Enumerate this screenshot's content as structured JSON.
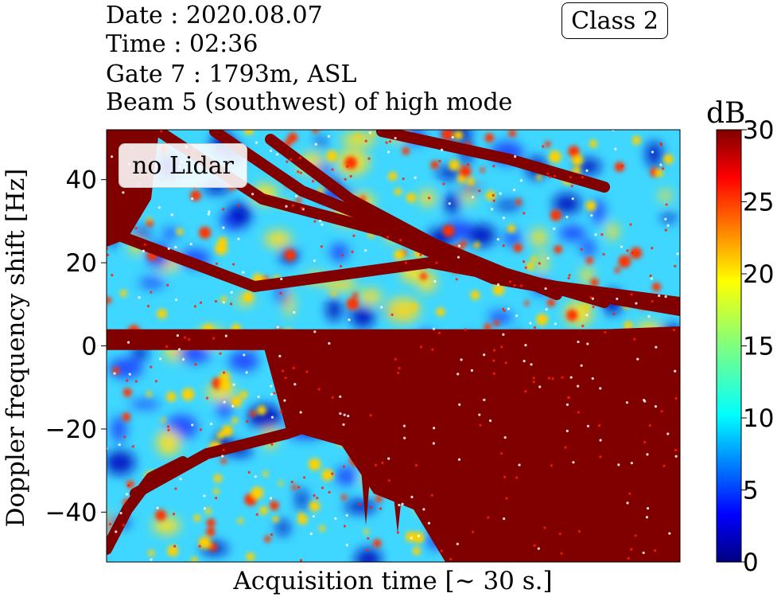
{
  "header": {
    "date": "Date : 2020.08.07",
    "time": "Time : 02:36",
    "gate": "Gate 7 : 1793m, ASL",
    "beam": "Beam 5 (southwest) of high mode",
    "class_label": "Class 2"
  },
  "annotation": "no Lidar",
  "chart_data": {
    "type": "heatmap",
    "xlabel": "Acquisition time [~ 30 s.]",
    "ylabel": "Doppler frequency shift [Hz]",
    "ylim": [
      -52,
      52
    ],
    "yticks": [
      40,
      20,
      0,
      -20,
      -40
    ],
    "ytick_labels": [
      "40",
      "20",
      "0",
      "−20",
      "−40"
    ],
    "xticks": [],
    "colorbar": {
      "label": "dB",
      "range": [
        0,
        30
      ],
      "ticks": [
        30,
        25,
        20,
        15,
        10,
        5,
        0
      ],
      "colormap": "jet"
    },
    "features": [
      {
        "name": "zero-shift band",
        "doppler_hz": 0,
        "level_db": 30
      },
      {
        "name": "upper oblique traces",
        "doppler_hz_range": [
          10,
          50
        ],
        "level_db": 30
      },
      {
        "name": "lower broadband region",
        "doppler_hz_range": [
          -50,
          0
        ],
        "level_db": 30
      }
    ]
  },
  "colors": {
    "jet_0": "#000080",
    "jet_mid": "#00ffff",
    "jet_max": "#800000"
  }
}
